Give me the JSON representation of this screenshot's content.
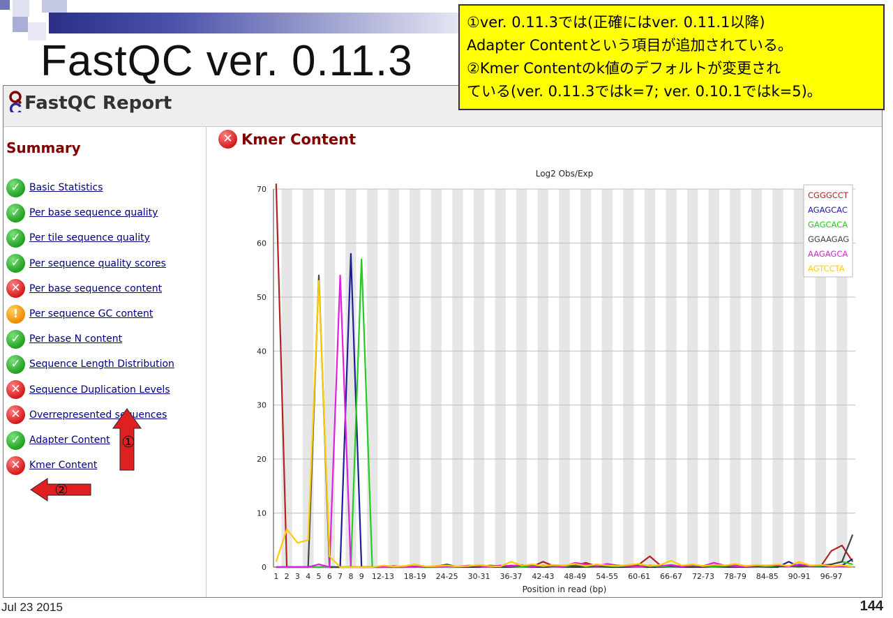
{
  "slide": {
    "title": "FastQC ver. 0.11.3",
    "date": "Jul 23 2015",
    "page_number": "144"
  },
  "note": {
    "lines": [
      "①ver. 0.11.3では(正確にはver. 0.11.1以降)",
      "Adapter Contentという項目が追加されている。",
      "②Kmer Contentのk値のデフォルトが変更され",
      "ている(ver. 0.11.3ではk=7; ver. 0.10.1ではk=5)。"
    ]
  },
  "report": {
    "logo_icon": "fastqc-logo-icon",
    "title": "FastQC Report",
    "summary_title": "Summary",
    "modules": [
      {
        "label": "Basic Statistics",
        "status": "pass",
        "icon": "check-circle-icon"
      },
      {
        "label": "Per base sequence quality",
        "status": "pass",
        "icon": "check-circle-icon"
      },
      {
        "label": "Per tile sequence quality",
        "status": "pass",
        "icon": "check-circle-icon"
      },
      {
        "label": "Per sequence quality scores",
        "status": "pass",
        "icon": "check-circle-icon"
      },
      {
        "label": "Per base sequence content",
        "status": "fail",
        "icon": "cross-circle-icon"
      },
      {
        "label": "Per sequence GC content",
        "status": "warn",
        "icon": "warning-circle-icon"
      },
      {
        "label": "Per base N content",
        "status": "pass",
        "icon": "check-circle-icon"
      },
      {
        "label": "Sequence Length Distribution",
        "status": "pass",
        "icon": "check-circle-icon"
      },
      {
        "label": "Sequence Duplication Levels",
        "status": "fail",
        "icon": "cross-circle-icon"
      },
      {
        "label": "Overrepresented sequences",
        "status": "fail",
        "icon": "cross-circle-icon"
      },
      {
        "label": "Adapter Content",
        "status": "pass",
        "icon": "check-circle-icon"
      },
      {
        "label": "Kmer Content",
        "status": "fail",
        "icon": "cross-circle-icon"
      }
    ],
    "section_title": "Kmer Content",
    "section_status": "fail"
  },
  "callouts": [
    {
      "label": "①",
      "target": "Adapter Content"
    },
    {
      "label": "②",
      "target": "Kmer Content"
    }
  ],
  "colors": {
    "pass": "#21a121",
    "fail": "#d41b1b",
    "warn": "#f08c00",
    "link": "#000080",
    "heading": "#800000",
    "note_bg": "#ffff00",
    "arrow": "#e02020"
  },
  "chart_data": {
    "type": "line",
    "title": "Log2 Obs/Exp",
    "xlabel": "Position in read (bp)",
    "ylabel": "",
    "ylim": [
      0,
      70
    ],
    "yticks": [
      0,
      10,
      20,
      30,
      40,
      50,
      60,
      70
    ],
    "grid": true,
    "legend_position": "top-right",
    "categories": [
      "1",
      "2",
      "3",
      "4",
      "5",
      "6",
      "7",
      "8",
      "9",
      "10-11",
      "12-13",
      "14-15",
      "16-17",
      "18-19",
      "20-21",
      "22-23",
      "24-25",
      "26-27",
      "28-29",
      "30-31",
      "32-33",
      "34-35",
      "36-37",
      "38-39",
      "40-41",
      "42-43",
      "44-45",
      "46-47",
      "48-49",
      "50-51",
      "52-53",
      "54-55",
      "56-57",
      "58-59",
      "60-61",
      "62-63",
      "64-65",
      "66-67",
      "68-69",
      "70-71",
      "72-73",
      "74-75",
      "76-77",
      "78-79",
      "80-81",
      "82-83",
      "84-85",
      "86-87",
      "88-89",
      "90-91",
      "92-93",
      "94-95",
      "96-97",
      "98-99",
      "100-101"
    ],
    "shown_tick_labels": [
      "1",
      "2",
      "3",
      "4",
      "5",
      "6",
      "7",
      "8",
      "9",
      "12-13",
      "18-19",
      "24-25",
      "30-31",
      "36-37",
      "42-43",
      "48-49",
      "54-55",
      "60-61",
      "66-67",
      "72-73",
      "78-79",
      "84-85",
      "90-91",
      "96-97"
    ],
    "series": [
      {
        "name": "CGGGCCT",
        "color": "#b22222",
        "values": [
          71,
          0,
          0,
          0,
          0,
          0,
          0,
          0,
          0,
          0,
          0,
          0.2,
          0,
          0.1,
          0,
          0.2,
          0.3,
          0,
          0.1,
          0,
          0.2,
          0.1,
          0.3,
          0.2,
          0.1,
          1,
          0.2,
          0.1,
          0.3,
          0.8,
          0.2,
          0.1,
          0.3,
          0.2,
          0.5,
          2,
          0.3,
          0.1,
          0.2,
          0.1,
          0.2,
          0.3,
          0.1,
          0.5,
          0.2,
          0.1,
          0.3,
          0.2,
          0.1,
          0.3,
          0.2,
          0.1,
          3,
          4,
          1
        ]
      },
      {
        "name": "AGAGCAC",
        "color": "#1e1e9a",
        "values": [
          0,
          0,
          0,
          0,
          0,
          0,
          0,
          58,
          0,
          0,
          0,
          0,
          0,
          0,
          0,
          0,
          0,
          0,
          0,
          0,
          0,
          0,
          0,
          0,
          0,
          0,
          0,
          0,
          0,
          0,
          0,
          0,
          0,
          0,
          0,
          0,
          0,
          0,
          0,
          0,
          0,
          0,
          0,
          0,
          0,
          0,
          0,
          0,
          1,
          0.1,
          0.1,
          0.1,
          0.1,
          0.3,
          1.5
        ]
      },
      {
        "name": "GAGCACA",
        "color": "#22cc22",
        "values": [
          0,
          0,
          0,
          0,
          0,
          0,
          0,
          0,
          57,
          0,
          0,
          0,
          0,
          0,
          0,
          0,
          0,
          0,
          0.2,
          0.1,
          0,
          0.2,
          0.1,
          0,
          0.1,
          0.2,
          0,
          0.1,
          0.2,
          0.1,
          0,
          0.1,
          0.2,
          0.1,
          0,
          0.2,
          0.1,
          0,
          0.1,
          0.2,
          0.1,
          0,
          0.1,
          0.2,
          0.1,
          0,
          0.1,
          0.2,
          0.1,
          0,
          0.1,
          0.2,
          0.5,
          1,
          0.5
        ]
      },
      {
        "name": "GGAAGAG",
        "color": "#444444",
        "values": [
          0,
          0,
          0,
          0,
          54,
          0,
          0,
          0,
          0,
          0,
          0,
          0,
          0,
          0.1,
          0,
          0.1,
          0.5,
          0,
          0.2,
          0.1,
          0.3,
          0.2,
          0.1,
          0.3,
          0.2,
          0.1,
          0.2,
          0.3,
          0.1,
          0.2,
          0.1,
          0.2,
          0.3,
          0.1,
          0.2,
          0.1,
          0.3,
          0.2,
          0.1,
          0.2,
          0.1,
          0.3,
          0.2,
          0.1,
          0.2,
          0.1,
          0.3,
          0.2,
          0.1,
          0.2,
          0.1,
          0.3,
          0.5,
          1,
          6
        ]
      },
      {
        "name": "AAGAGCA",
        "color": "#e020e0",
        "values": [
          0,
          0,
          0,
          0,
          0.5,
          0,
          54,
          0,
          0,
          0,
          0,
          0,
          0,
          0,
          0.1,
          0,
          0.2,
          0.1,
          0.3,
          0.2,
          0.1,
          0.3,
          0.2,
          0.4,
          0.1,
          0.3,
          0.2,
          0.1,
          0.8,
          0.5,
          0.2,
          0.6,
          0.3,
          0.2,
          0.1,
          0.3,
          0.2,
          0.4,
          0.1,
          0.3,
          0.2,
          0.8,
          0.3,
          0.2,
          0.1,
          0.3,
          0.2,
          0.4,
          0.1,
          0.5,
          0.2,
          0.3,
          0.1,
          0.2,
          0.1
        ]
      },
      {
        "name": "AGTCCTA",
        "color": "#ffcc00",
        "values": [
          1,
          7,
          4.5,
          5,
          53,
          2,
          0,
          0,
          0,
          0,
          0.3,
          0.1,
          0.2,
          0.5,
          0.1,
          0.2,
          0.3,
          0.1,
          0.2,
          0.4,
          0.2,
          0.1,
          1,
          0.3,
          0.5,
          0.2,
          0.4,
          0.3,
          0.6,
          0.2,
          0.5,
          0.3,
          0.2,
          0.4,
          0.6,
          0.2,
          0.4,
          1.2,
          0.3,
          0.5,
          0.2,
          0.4,
          0.3,
          0.6,
          0.2,
          0.4,
          0.3,
          0.5,
          0.2,
          1,
          0.3,
          0.4,
          0.2,
          0.3,
          0.1
        ]
      }
    ]
  }
}
